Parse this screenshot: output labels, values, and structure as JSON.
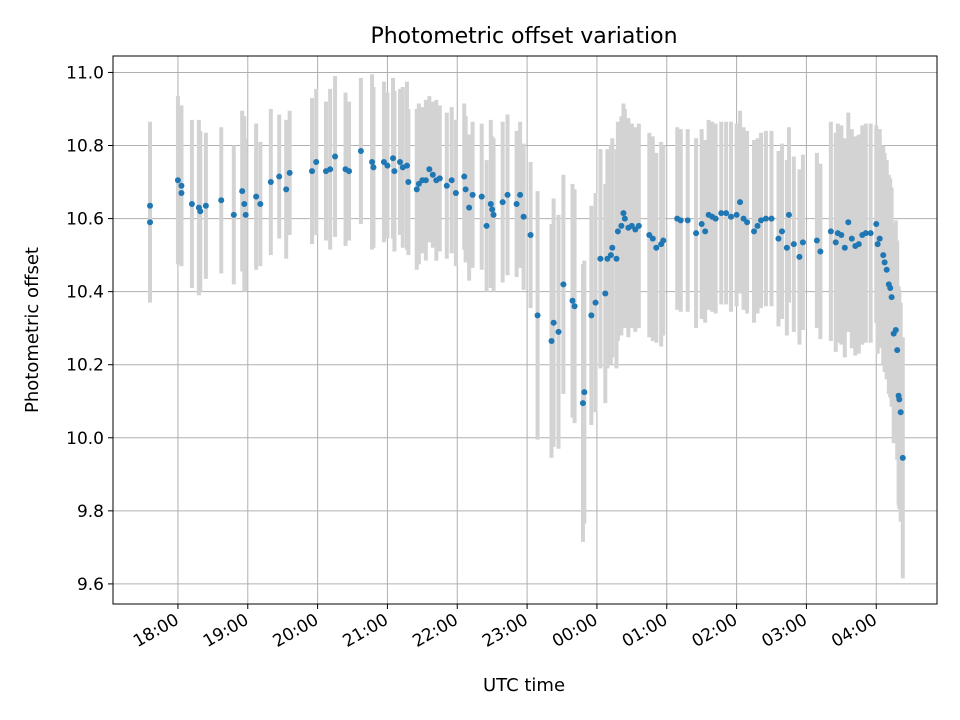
{
  "chart_data": {
    "type": "scatter",
    "title": "Photometric offset variation",
    "xlabel": "UTC time",
    "ylabel": "Photometric offset",
    "grid": true,
    "x_unit": "hours since 18:00 UTC",
    "xlim": [
      -0.93,
      10.87
    ],
    "ylim": [
      9.545,
      11.045
    ],
    "xticks": [
      {
        "value": 0,
        "label": "18:00"
      },
      {
        "value": 1,
        "label": "19:00"
      },
      {
        "value": 2,
        "label": "20:00"
      },
      {
        "value": 3,
        "label": "21:00"
      },
      {
        "value": 4,
        "label": "22:00"
      },
      {
        "value": 5,
        "label": "23:00"
      },
      {
        "value": 6,
        "label": "00:00"
      },
      {
        "value": 7,
        "label": "01:00"
      },
      {
        "value": 8,
        "label": "02:00"
      },
      {
        "value": 9,
        "label": "03:00"
      },
      {
        "value": 10,
        "label": "04:00"
      }
    ],
    "yticks": [
      {
        "value": 9.6,
        "label": "9.6"
      },
      {
        "value": 9.8,
        "label": "9.8"
      },
      {
        "value": 10.0,
        "label": "10.0"
      },
      {
        "value": 10.2,
        "label": "10.2"
      },
      {
        "value": 10.4,
        "label": "10.4"
      },
      {
        "value": 10.6,
        "label": "10.6"
      },
      {
        "value": 10.8,
        "label": "10.8"
      },
      {
        "value": 11.0,
        "label": "11.0"
      }
    ],
    "series": [
      {
        "name": "Photometric offset",
        "marker_color": "#1f77b4",
        "errorbar_color": "#d3d3d3",
        "points": [
          [
            -0.4,
            10.635,
            0.23
          ],
          [
            -0.4,
            10.59,
            0.22
          ],
          [
            0.0,
            10.705,
            0.23
          ],
          [
            0.05,
            10.69,
            0.22
          ],
          [
            0.05,
            10.67,
            0.2
          ],
          [
            0.2,
            10.64,
            0.23
          ],
          [
            0.3,
            10.63,
            0.24
          ],
          [
            0.32,
            10.62,
            0.22
          ],
          [
            0.4,
            10.635,
            0.2
          ],
          [
            0.62,
            10.65,
            0.2
          ],
          [
            0.8,
            10.61,
            0.19
          ],
          [
            0.92,
            10.675,
            0.22
          ],
          [
            0.95,
            10.64,
            0.24
          ],
          [
            0.97,
            10.61,
            0.21
          ],
          [
            1.12,
            10.66,
            0.2
          ],
          [
            1.18,
            10.64,
            0.17
          ],
          [
            1.33,
            10.7,
            0.2
          ],
          [
            1.45,
            10.715,
            0.17
          ],
          [
            1.55,
            10.68,
            0.19
          ],
          [
            1.6,
            10.725,
            0.17
          ],
          [
            1.92,
            10.73,
            0.2
          ],
          [
            1.98,
            10.755,
            0.2
          ],
          [
            2.12,
            10.73,
            0.19
          ],
          [
            2.18,
            10.735,
            0.22
          ],
          [
            2.25,
            10.77,
            0.22
          ],
          [
            2.4,
            10.735,
            0.21
          ],
          [
            2.45,
            10.73,
            0.19
          ],
          [
            2.62,
            10.785,
            0.2
          ],
          [
            2.78,
            10.755,
            0.24
          ],
          [
            2.8,
            10.74,
            0.22
          ],
          [
            2.95,
            10.755,
            0.22
          ],
          [
            3.0,
            10.745,
            0.2
          ],
          [
            3.08,
            10.765,
            0.22
          ],
          [
            3.1,
            10.73,
            0.22
          ],
          [
            3.18,
            10.755,
            0.2
          ],
          [
            3.22,
            10.74,
            0.22
          ],
          [
            3.28,
            10.745,
            0.23
          ],
          [
            3.3,
            10.7,
            0.2
          ],
          [
            3.42,
            10.68,
            0.22
          ],
          [
            3.45,
            10.695,
            0.22
          ],
          [
            3.5,
            10.705,
            0.2
          ],
          [
            3.55,
            10.705,
            0.22
          ],
          [
            3.6,
            10.735,
            0.2
          ],
          [
            3.65,
            10.72,
            0.2
          ],
          [
            3.7,
            10.705,
            0.22
          ],
          [
            3.75,
            10.71,
            0.2
          ],
          [
            3.85,
            10.69,
            0.2
          ],
          [
            3.92,
            10.705,
            0.2
          ],
          [
            3.98,
            10.67,
            0.2
          ],
          [
            4.1,
            10.715,
            0.2
          ],
          [
            4.12,
            10.68,
            0.2
          ],
          [
            4.17,
            10.63,
            0.2
          ],
          [
            4.22,
            10.665,
            0.2
          ],
          [
            4.35,
            10.66,
            0.2
          ],
          [
            4.42,
            10.58,
            0.18
          ],
          [
            4.48,
            10.64,
            0.23
          ],
          [
            4.5,
            10.625,
            0.2
          ],
          [
            4.52,
            10.61,
            0.21
          ],
          [
            4.65,
            10.645,
            0.22
          ],
          [
            4.72,
            10.665,
            0.22
          ],
          [
            4.85,
            10.64,
            0.2
          ],
          [
            4.9,
            10.665,
            0.2
          ],
          [
            4.95,
            10.605,
            0.2
          ],
          [
            5.05,
            10.555,
            0.2
          ],
          [
            5.15,
            10.335,
            0.34
          ],
          [
            5.35,
            10.265,
            0.32
          ],
          [
            5.38,
            10.315,
            0.34
          ],
          [
            5.45,
            10.29,
            0.32
          ],
          [
            5.52,
            10.42,
            0.3
          ],
          [
            5.65,
            10.375,
            0.32
          ],
          [
            5.68,
            10.36,
            0.32
          ],
          [
            5.8,
            10.095,
            0.38
          ],
          [
            5.82,
            10.125,
            0.36
          ],
          [
            5.92,
            10.335,
            0.3
          ],
          [
            5.98,
            10.37,
            0.3
          ],
          [
            6.05,
            10.49,
            0.3
          ],
          [
            6.12,
            10.395,
            0.3
          ],
          [
            6.15,
            10.49,
            0.3
          ],
          [
            6.2,
            10.5,
            0.3
          ],
          [
            6.22,
            10.52,
            0.3
          ],
          [
            6.28,
            10.49,
            0.3
          ],
          [
            6.3,
            10.565,
            0.3
          ],
          [
            6.35,
            10.58,
            0.3
          ],
          [
            6.38,
            10.615,
            0.3
          ],
          [
            6.4,
            10.6,
            0.3
          ],
          [
            6.45,
            10.575,
            0.3
          ],
          [
            6.5,
            10.58,
            0.28
          ],
          [
            6.55,
            10.57,
            0.28
          ],
          [
            6.6,
            10.58,
            0.28
          ],
          [
            6.75,
            10.555,
            0.28
          ],
          [
            6.8,
            10.545,
            0.28
          ],
          [
            6.85,
            10.52,
            0.26
          ],
          [
            6.92,
            10.53,
            0.28
          ],
          [
            6.95,
            10.54,
            0.26
          ],
          [
            7.15,
            10.6,
            0.25
          ],
          [
            7.2,
            10.595,
            0.25
          ],
          [
            7.3,
            10.595,
            0.25
          ],
          [
            7.42,
            10.56,
            0.26
          ],
          [
            7.5,
            10.585,
            0.26
          ],
          [
            7.55,
            10.565,
            0.25
          ],
          [
            7.6,
            10.61,
            0.26
          ],
          [
            7.65,
            10.605,
            0.26
          ],
          [
            7.7,
            10.6,
            0.26
          ],
          [
            7.78,
            10.615,
            0.25
          ],
          [
            7.85,
            10.615,
            0.25
          ],
          [
            7.92,
            10.605,
            0.26
          ],
          [
            8.0,
            10.61,
            0.25
          ],
          [
            8.05,
            10.645,
            0.25
          ],
          [
            8.1,
            10.6,
            0.25
          ],
          [
            8.15,
            10.59,
            0.25
          ],
          [
            8.25,
            10.565,
            0.25
          ],
          [
            8.3,
            10.58,
            0.24
          ],
          [
            8.35,
            10.595,
            0.24
          ],
          [
            8.42,
            10.6,
            0.24
          ],
          [
            8.5,
            10.6,
            0.24
          ],
          [
            8.6,
            10.545,
            0.24
          ],
          [
            8.65,
            10.565,
            0.24
          ],
          [
            8.72,
            10.52,
            0.24
          ],
          [
            8.75,
            10.61,
            0.24
          ],
          [
            8.82,
            10.53,
            0.24
          ],
          [
            8.9,
            10.495,
            0.24
          ],
          [
            8.95,
            10.535,
            0.24
          ],
          [
            9.15,
            10.54,
            0.24
          ],
          [
            9.2,
            10.51,
            0.24
          ],
          [
            9.35,
            10.565,
            0.3
          ],
          [
            9.42,
            10.535,
            0.3
          ],
          [
            9.45,
            10.56,
            0.3
          ],
          [
            9.5,
            10.555,
            0.3
          ],
          [
            9.55,
            10.52,
            0.3
          ],
          [
            9.6,
            10.59,
            0.3
          ],
          [
            9.65,
            10.545,
            0.3
          ],
          [
            9.7,
            10.525,
            0.3
          ],
          [
            9.75,
            10.53,
            0.3
          ],
          [
            9.8,
            10.555,
            0.3
          ],
          [
            9.85,
            10.56,
            0.3
          ],
          [
            9.92,
            10.56,
            0.3
          ],
          [
            10.0,
            10.585,
            0.27
          ],
          [
            10.02,
            10.53,
            0.3
          ],
          [
            10.05,
            10.545,
            0.3
          ],
          [
            10.1,
            10.5,
            0.3
          ],
          [
            10.12,
            10.48,
            0.3
          ],
          [
            10.15,
            10.46,
            0.3
          ],
          [
            10.18,
            10.42,
            0.3
          ],
          [
            10.2,
            10.41,
            0.3
          ],
          [
            10.22,
            10.385,
            0.3
          ],
          [
            10.25,
            10.285,
            0.3
          ],
          [
            10.28,
            10.295,
            0.3
          ],
          [
            10.3,
            10.24,
            0.3
          ],
          [
            10.32,
            10.115,
            0.3
          ],
          [
            10.33,
            10.105,
            0.3
          ],
          [
            10.35,
            10.07,
            0.3
          ],
          [
            10.38,
            9.945,
            0.33
          ]
        ]
      }
    ]
  }
}
